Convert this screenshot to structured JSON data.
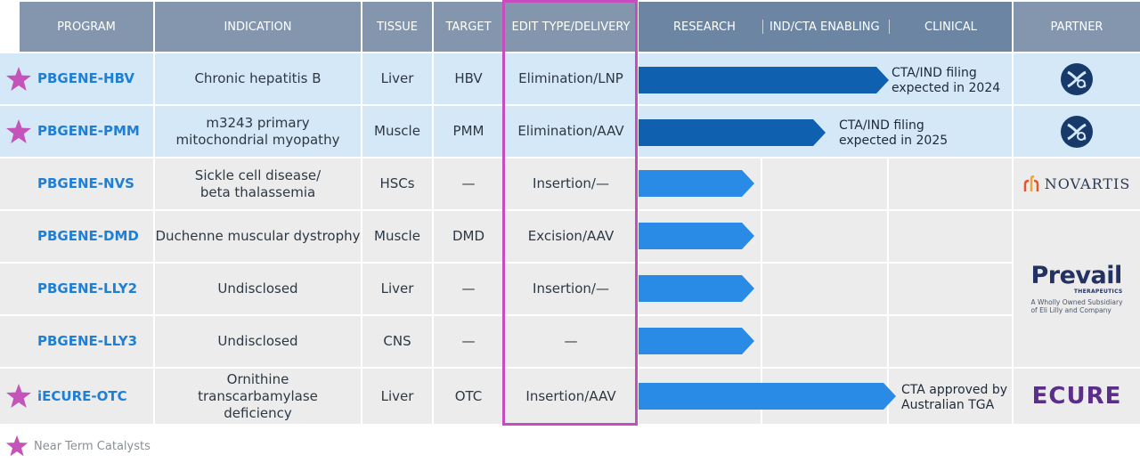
{
  "header": {
    "program": "PROGRAM",
    "indication": "INDICATION",
    "tissue": "TISSUE",
    "target": "TARGET",
    "edit_type": "EDIT TYPE/DELIVERY",
    "research": "RESEARCH",
    "ind_cta": "IND/CTA ENABLING",
    "clinical": "CLINICAL",
    "partner": "PARTNER"
  },
  "rows": [
    {
      "program": "PBGENE-HBV",
      "indication": "Chronic hepatitis B",
      "tissue": "Liver",
      "target": "HBV",
      "edit": "Elimination/LNP",
      "note_line1": "CTA/IND filing",
      "note_line2": "expected in 2024"
    },
    {
      "program": "PBGENE-PMM",
      "indication": "m3243 primary mitochondrial myopathy",
      "tissue": "Muscle",
      "target": "PMM",
      "edit": "Elimination/AAV",
      "note_line1": "CTA/IND filing",
      "note_line2": "expected in 2025"
    },
    {
      "program": "PBGENE-NVS",
      "indication": "Sickle cell disease/ beta thalassemia",
      "tissue": "HSCs",
      "target": "—",
      "edit": "Insertion/—"
    },
    {
      "program": "PBGENE-DMD",
      "indication": "Duchenne muscular dystrophy",
      "tissue": "Muscle",
      "target": "DMD",
      "edit": "Excision/AAV"
    },
    {
      "program": "PBGENE-LLY2",
      "indication": "Undisclosed",
      "tissue": "Liver",
      "target": "—",
      "edit": "Insertion/—"
    },
    {
      "program": "PBGENE-LLY3",
      "indication": "Undisclosed",
      "tissue": "CNS",
      "target": "—",
      "edit": "—"
    },
    {
      "program": "iECURE-OTC",
      "indication": "Ornithine transcarbamylase deficiency",
      "tissue": "Liver",
      "target": "OTC",
      "edit": "Insertion/AAV",
      "note_line1": "CTA approved by",
      "note_line2": "Australian TGA"
    }
  ],
  "partners": {
    "novartis": "NOVARTIS",
    "prevail_name": "Prevail",
    "prevail_sub": "THERAPEUTICS",
    "prevail_desc1": "A Wholly Owned Subsidiary",
    "prevail_desc2": "of Eli Lilly and Company",
    "ecure": "ECURE"
  },
  "progress": [
    {
      "program": "PBGENE-HBV",
      "stage": "IND/CTA Enabling",
      "fraction": 0.67
    },
    {
      "program": "PBGENE-PMM",
      "stage": "IND/CTA Enabling",
      "fraction": 0.5
    },
    {
      "program": "PBGENE-NVS",
      "stage": "Research",
      "fraction": 0.31
    },
    {
      "program": "PBGENE-DMD",
      "stage": "Research",
      "fraction": 0.31
    },
    {
      "program": "PBGENE-LLY2",
      "stage": "Research",
      "fraction": 0.31
    },
    {
      "program": "PBGENE-LLY3",
      "stage": "Research",
      "fraction": 0.31
    },
    {
      "program": "iECURE-OTC",
      "stage": "IND/CTA Enabling",
      "fraction": 0.69
    }
  ],
  "legend": {
    "label": "Near Term Catalysts"
  },
  "colors": {
    "header_bg": "#8496ad",
    "stage_header_bg": "#6b85a3",
    "highlight_row_bg": "#d5e8f7",
    "row_bg": "#ececec",
    "program_text": "#1e7fd6",
    "bar_dark": "#1060b0",
    "bar_light": "#2a8be6",
    "star": "#c454b9",
    "edit_box_border": "#c64cc0"
  },
  "icons": {
    "star": "star-icon",
    "partner_row1": "gene-logo-icon",
    "partner_row2": "gene-logo-icon"
  }
}
